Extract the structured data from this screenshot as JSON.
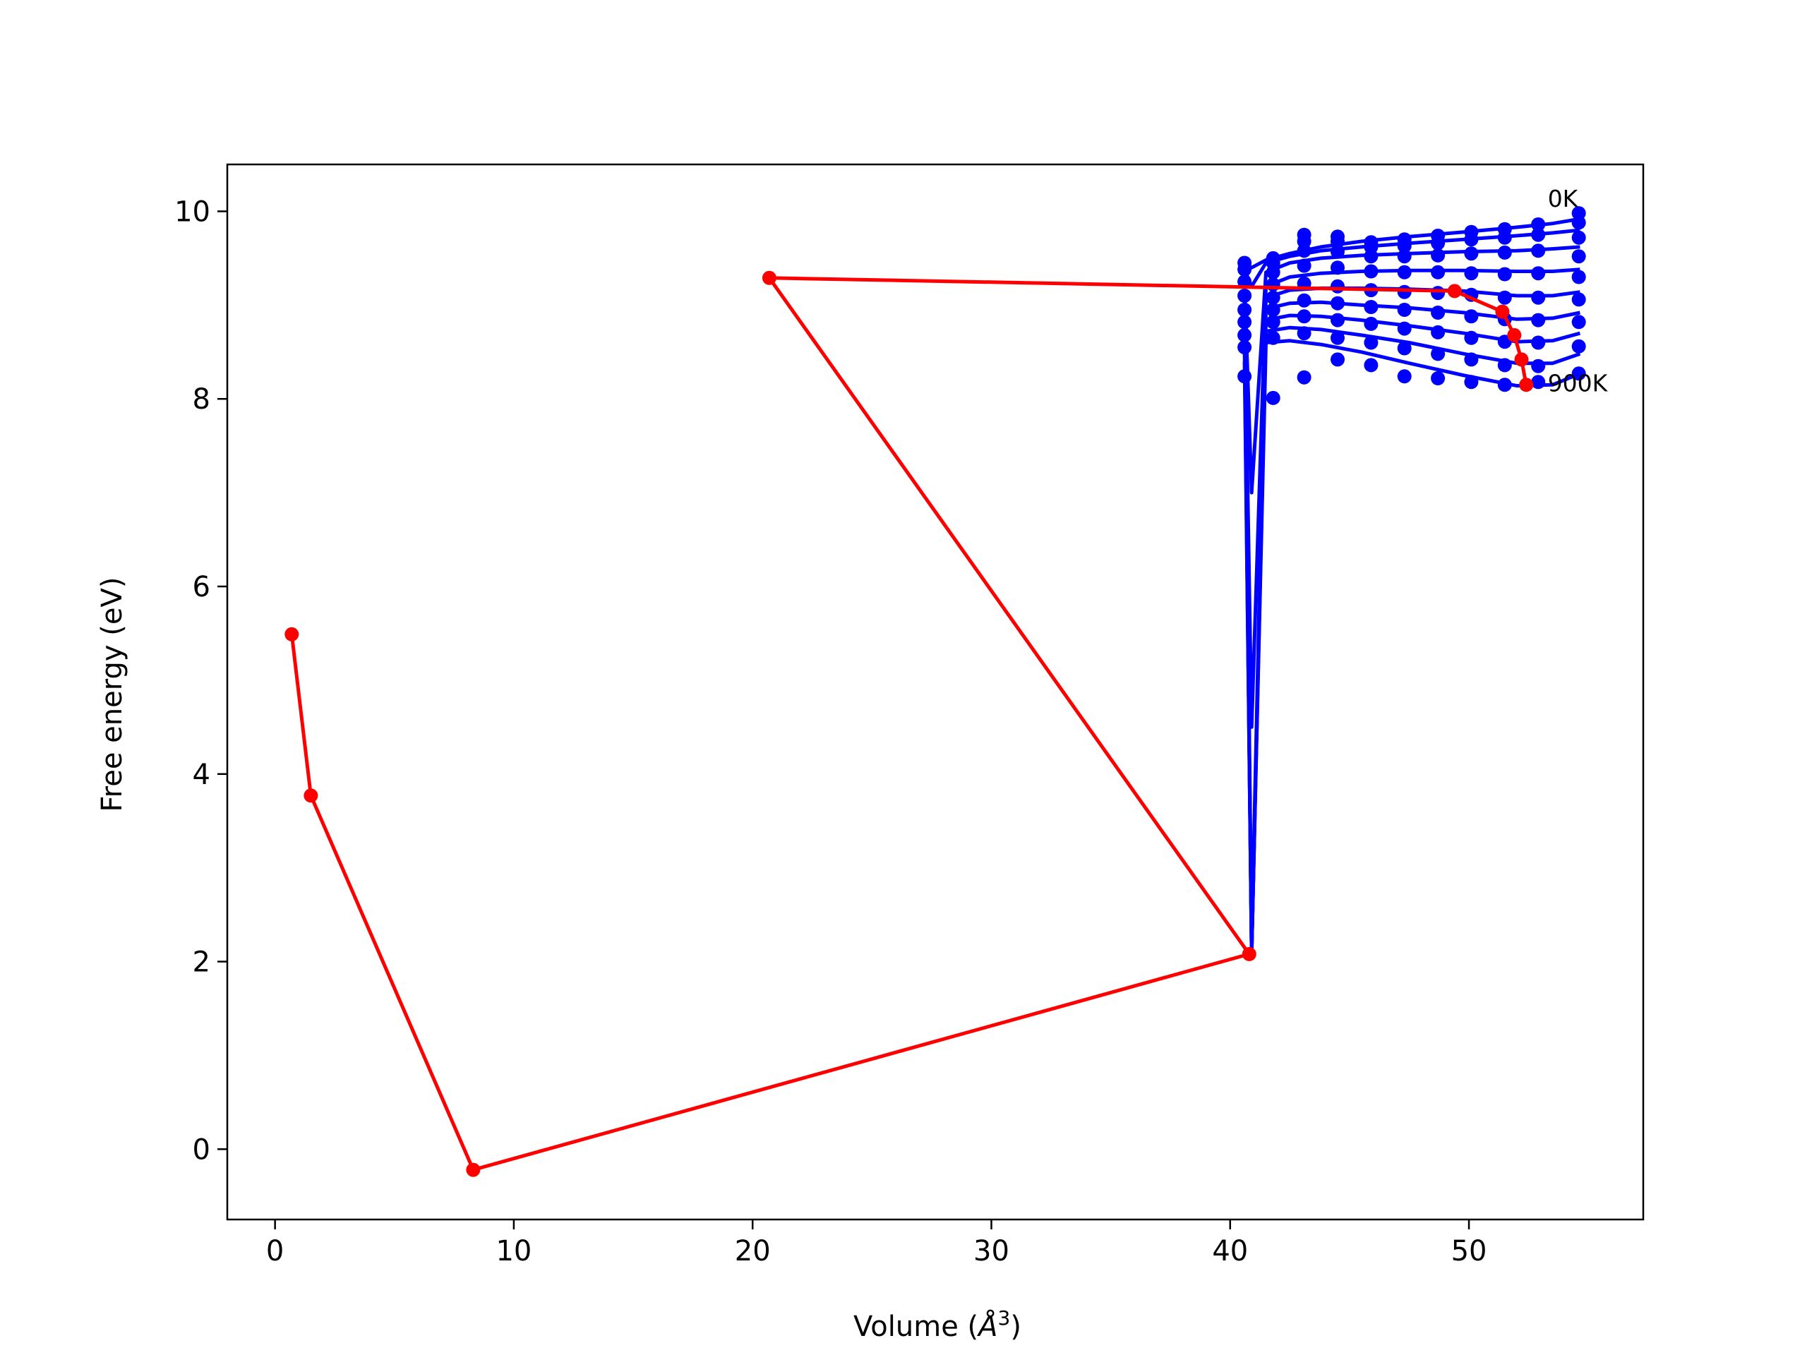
{
  "chart_data": {
    "type": "line",
    "title": "",
    "xlabel_prefix": "Volume (",
    "xlabel_symbol": "Å",
    "xlabel_sup": "3",
    "xlabel_suffix": ")",
    "ylabel": "Free energy (eV)",
    "xlim": [
      -2,
      57.3
    ],
    "ylim": [
      -0.75,
      10.5
    ],
    "xticks": [
      0,
      10,
      20,
      30,
      40,
      50
    ],
    "yticks": [
      0,
      2,
      4,
      6,
      8,
      10
    ],
    "grid": false,
    "colors": {
      "curves": "#0000ff",
      "minima": "#ff0000"
    },
    "annotations": [
      {
        "text": "0K",
        "x": 53.3,
        "y": 10.05
      },
      {
        "text": "900K",
        "x": 53.3,
        "y": 8.08
      }
    ],
    "series": [
      {
        "color": "#0000ff",
        "curve_x": [
          40.6,
          40.9,
          41.5,
          42.5,
          43.8,
          45.5,
          47.5,
          49.8,
          52.0,
          53.5,
          54.65
        ],
        "curves_y": [
          [
            9.45,
            9.4,
            9.48,
            9.55,
            9.62,
            9.68,
            9.73,
            9.78,
            9.83,
            9.87,
            9.92
          ],
          [
            9.38,
            9.2,
            9.45,
            9.52,
            9.58,
            9.62,
            9.66,
            9.7,
            9.74,
            9.77,
            9.8
          ],
          [
            9.25,
            7.0,
            9.35,
            9.45,
            9.5,
            9.53,
            9.55,
            9.57,
            9.58,
            9.6,
            9.62
          ],
          [
            9.1,
            4.5,
            9.2,
            9.3,
            9.34,
            9.36,
            9.37,
            9.37,
            9.36,
            9.36,
            9.38
          ],
          [
            8.95,
            2.2,
            9.08,
            9.16,
            9.18,
            9.18,
            9.17,
            9.15,
            9.1,
            9.1,
            9.14
          ],
          [
            8.82,
            2.07,
            8.96,
            9.02,
            9.03,
            9.0,
            8.97,
            8.92,
            8.85,
            8.86,
            8.92
          ],
          [
            8.68,
            2.07,
            8.84,
            8.89,
            8.88,
            8.84,
            8.78,
            8.7,
            8.61,
            8.62,
            8.7
          ],
          [
            8.55,
            2.07,
            8.72,
            8.76,
            8.74,
            8.68,
            8.6,
            8.48,
            8.38,
            8.38,
            8.48
          ],
          [
            8.4,
            2.07,
            8.6,
            8.62,
            8.58,
            8.5,
            8.38,
            8.25,
            8.14,
            8.15,
            8.27
          ]
        ],
        "points_x": [
          40.6,
          41.8,
          43.1,
          44.5,
          45.9,
          47.3,
          48.7,
          50.1,
          51.5,
          52.9,
          54.6
        ],
        "points_y": [
          [
            9.45,
            9.5,
            9.75,
            9.73,
            9.67,
            9.7,
            9.74,
            9.78,
            9.81,
            9.86,
            9.98
          ],
          [
            9.38,
            9.45,
            9.68,
            9.68,
            9.62,
            9.63,
            9.66,
            9.7,
            9.72,
            9.75,
            9.88
          ],
          [
            9.25,
            9.35,
            9.58,
            9.57,
            9.52,
            9.52,
            9.53,
            9.55,
            9.56,
            9.58,
            9.72
          ],
          [
            9.1,
            9.22,
            9.42,
            9.4,
            9.36,
            9.35,
            9.35,
            9.34,
            9.33,
            9.34,
            9.52
          ],
          [
            8.95,
            9.08,
            9.23,
            9.2,
            9.16,
            9.14,
            9.13,
            9.11,
            9.08,
            9.08,
            9.3
          ],
          [
            8.82,
            8.95,
            9.05,
            9.02,
            8.98,
            8.95,
            8.92,
            8.88,
            8.85,
            8.84,
            9.06
          ],
          [
            8.68,
            8.82,
            8.88,
            8.84,
            8.8,
            8.75,
            8.71,
            8.65,
            8.61,
            8.6,
            8.82
          ],
          [
            8.55,
            8.65,
            8.7,
            8.65,
            8.6,
            8.54,
            8.48,
            8.42,
            8.36,
            8.35,
            8.56
          ],
          [
            8.24,
            8.01,
            8.23,
            8.42,
            8.36,
            8.24,
            8.22,
            8.18,
            8.15,
            8.18,
            8.27
          ]
        ]
      },
      {
        "color": "#ff0000",
        "x": [
          0.7,
          1.5,
          8.3,
          40.8,
          20.7,
          49.4,
          51.4,
          51.9,
          52.2,
          52.4
        ],
        "y": [
          5.49,
          3.77,
          -0.22,
          2.08,
          9.29,
          9.15,
          8.93,
          8.68,
          8.42,
          8.15
        ]
      }
    ]
  }
}
